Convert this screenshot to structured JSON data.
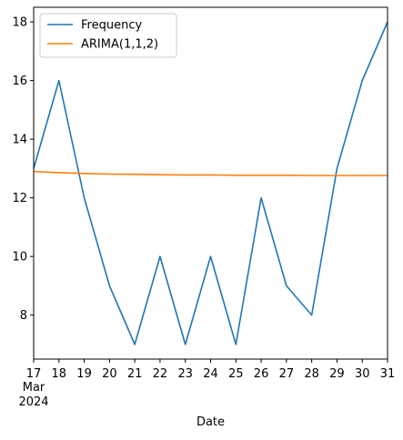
{
  "chart_data": {
    "type": "line",
    "title": "",
    "xlabel": "Date",
    "ylabel": "",
    "x": [
      "2024-03-17",
      "2024-03-18",
      "2024-03-19",
      "2024-03-20",
      "2024-03-21",
      "2024-03-22",
      "2024-03-23",
      "2024-03-24",
      "2024-03-25",
      "2024-03-26",
      "2024-03-27",
      "2024-03-28",
      "2024-03-29",
      "2024-03-30",
      "2024-03-31"
    ],
    "x_tick_labels": [
      "17",
      "18",
      "19",
      "20",
      "21",
      "22",
      "23",
      "24",
      "25",
      "26",
      "27",
      "28",
      "29",
      "30",
      "31"
    ],
    "x_tick_sublabel": {
      "month": "Mar",
      "year": "2024"
    },
    "ylim": [
      6.5,
      18.5
    ],
    "y_ticks": [
      8,
      10,
      12,
      14,
      16,
      18
    ],
    "grid": false,
    "legend": "top-left",
    "series": [
      {
        "name": "Frequency",
        "color": "#1f77b4",
        "values": [
          13,
          16,
          12,
          9,
          7,
          10,
          7,
          10,
          7,
          12,
          9,
          8,
          13,
          16,
          18
        ]
      },
      {
        "name": "ARIMA(1,1,2)",
        "color": "#ff7f0e",
        "values": [
          12.9,
          12.86,
          12.83,
          12.81,
          12.8,
          12.79,
          12.78,
          12.78,
          12.77,
          12.77,
          12.77,
          12.76,
          12.76,
          12.76,
          12.76
        ]
      }
    ]
  }
}
